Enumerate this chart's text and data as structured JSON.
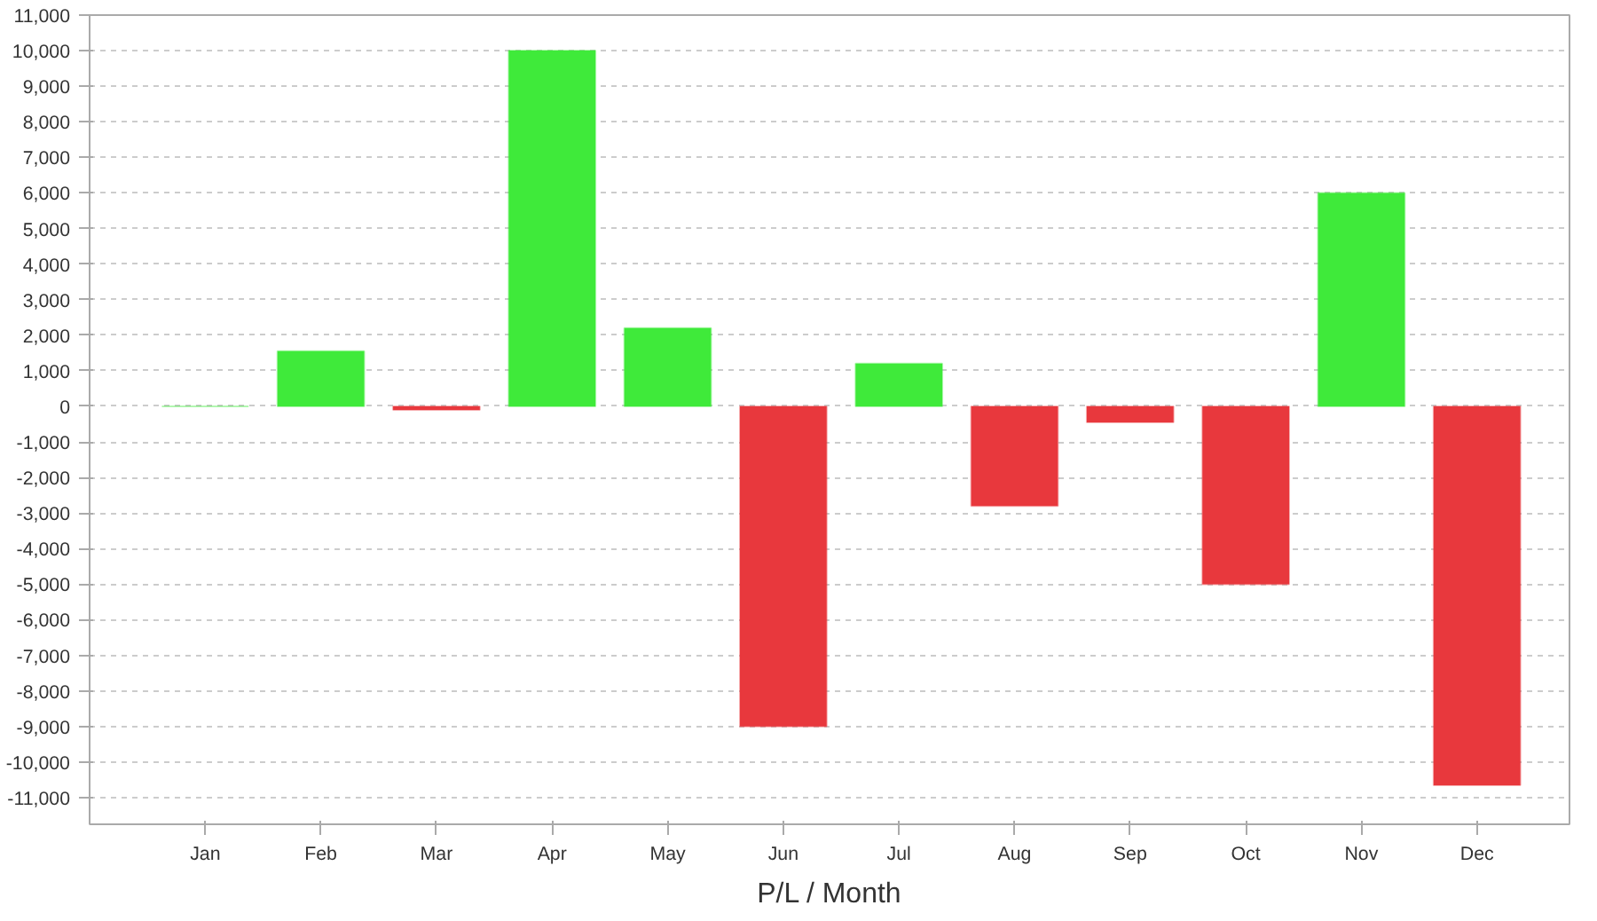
{
  "chart_data": {
    "type": "bar",
    "xlabel": "P/L / Month",
    "categories": [
      "Jan",
      "Feb",
      "Mar",
      "Apr",
      "May",
      "Jun",
      "Jul",
      "Aug",
      "Sep",
      "Oct",
      "Nov",
      "Dec"
    ],
    "values": [
      0,
      1550,
      -100,
      10000,
      2200,
      -9000,
      1200,
      -2800,
      -450,
      -5000,
      6000,
      -10650
    ],
    "colors": [
      "#3fea3a",
      "#3fea3a",
      "#e8383d",
      "#3fea3a",
      "#3fea3a",
      "#e8383d",
      "#3fea3a",
      "#e8383d",
      "#e8383d",
      "#e8383d",
      "#3fea3a",
      "#e8383d"
    ],
    "ylim": [
      -11750,
      11000
    ],
    "yticks": [
      {
        "value": -11000,
        "label": "-11,000"
      },
      {
        "value": -10000,
        "label": "-10,000"
      },
      {
        "value": -9000,
        "label": "-9,000"
      },
      {
        "value": -8000,
        "label": "-8,000"
      },
      {
        "value": -7000,
        "label": "-7,000"
      },
      {
        "value": -6000,
        "label": "-6,000"
      },
      {
        "value": -5000,
        "label": "-5,000"
      },
      {
        "value": -4000,
        "label": "-4,000"
      },
      {
        "value": -3000,
        "label": "-3,000"
      },
      {
        "value": -2000,
        "label": "-2,000"
      },
      {
        "value": -1000,
        "label": "-1,000"
      },
      0,
      {
        "value": 1000,
        "label": "1,000"
      },
      {
        "value": 2000,
        "label": "2,000"
      },
      {
        "value": 3000,
        "label": "3,000"
      },
      {
        "value": 4000,
        "label": "4,000"
      },
      {
        "value": 5000,
        "label": "5,000"
      },
      {
        "value": 6000,
        "label": "6,000"
      },
      {
        "value": 7000,
        "label": "7,000"
      },
      {
        "value": 8000,
        "label": "8,000"
      },
      {
        "value": 9000,
        "label": "9,000"
      },
      {
        "value": 10000,
        "label": "10,000"
      },
      {
        "value": 11000,
        "label": "11,000"
      }
    ],
    "grid": "y"
  }
}
